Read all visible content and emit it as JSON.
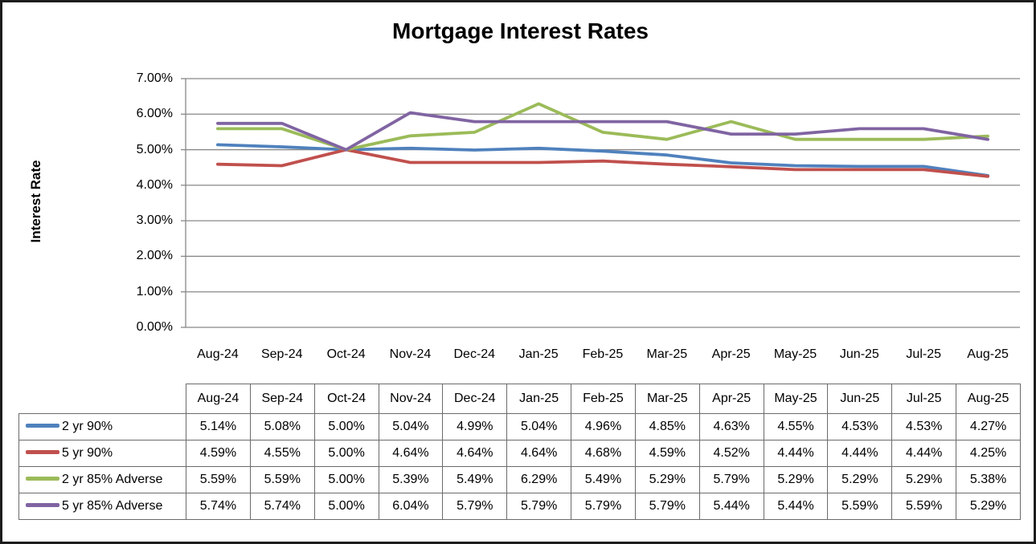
{
  "frame": {
    "background_color": "#ffffff",
    "border_color": "#1c1c1c"
  },
  "chart_data": {
    "type": "line",
    "title": "Mortgage Interest Rates",
    "xlabel": "",
    "ylabel": "Interest Rate",
    "ylim": [
      0,
      7
    ],
    "ytick_step": 1,
    "ytick_labels": [
      "0.00%",
      "1.00%",
      "2.00%",
      "3.00%",
      "4.00%",
      "5.00%",
      "6.00%",
      "7.00%"
    ],
    "grid": true,
    "gridline_color": "#878787",
    "axis_color": "#878787",
    "legend_position": "table-left",
    "value_suffix": "%",
    "categories": [
      "Aug-24",
      "Sep-24",
      "Oct-24",
      "Nov-24",
      "Dec-24",
      "Jan-25",
      "Feb-25",
      "Mar-25",
      "Apr-25",
      "May-25",
      "Jun-25",
      "Jul-25",
      "Aug-25"
    ],
    "series": [
      {
        "name": "2 yr 90%",
        "color": "#4F81BD",
        "values": [
          5.14,
          5.08,
          5.0,
          5.04,
          4.99,
          5.04,
          4.96,
          4.85,
          4.63,
          4.55,
          4.53,
          4.53,
          4.27
        ]
      },
      {
        "name": "5 yr 90%",
        "color": "#C0504D",
        "values": [
          4.59,
          4.55,
          5.0,
          4.64,
          4.64,
          4.64,
          4.68,
          4.59,
          4.52,
          4.44,
          4.44,
          4.44,
          4.25
        ]
      },
      {
        "name": "2 yr 85% Adverse",
        "color": "#9BBB59",
        "values": [
          5.59,
          5.59,
          5.0,
          5.39,
          5.49,
          6.29,
          5.49,
          5.29,
          5.79,
          5.29,
          5.29,
          5.29,
          5.38
        ]
      },
      {
        "name": "5 yr 85% Adverse",
        "color": "#8064A2",
        "values": [
          5.74,
          5.74,
          5.0,
          6.04,
          5.79,
          5.79,
          5.79,
          5.79,
          5.44,
          5.44,
          5.59,
          5.59,
          5.29
        ]
      }
    ]
  },
  "table": {
    "border_color": "#6b6b6b",
    "column_headers": [
      "Aug-24",
      "Sep-24",
      "Oct-24",
      "Nov-24",
      "Dec-24",
      "Jan-25",
      "Feb-25",
      "Mar-25",
      "Apr-25",
      "May-25",
      "Jun-25",
      "Jul-25",
      "Aug-25"
    ],
    "row_labels": [
      "2 yr 90%",
      "5 yr 90%",
      "2 yr 85% Adverse",
      "5 yr 85% Adverse"
    ]
  }
}
